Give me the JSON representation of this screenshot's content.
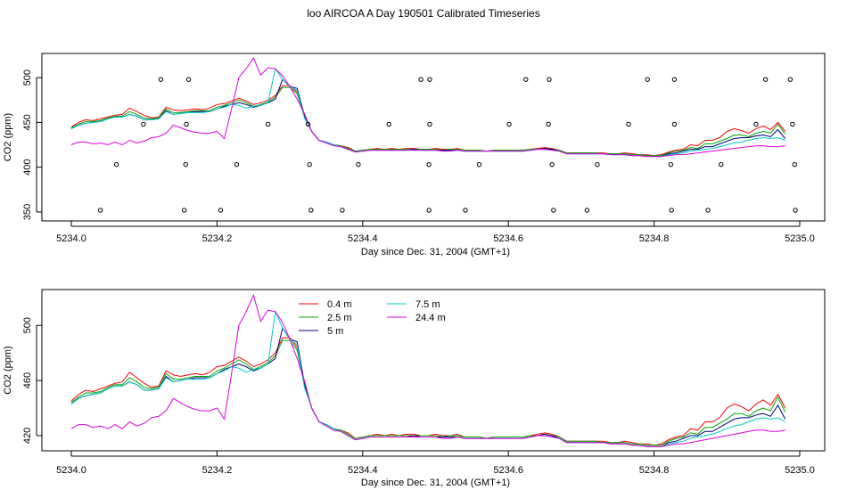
{
  "title": "loo AIRCOA A  Day 190501  Calibrated Timeseries",
  "chart_data": [
    {
      "type": "scatter+line",
      "title": "",
      "xlabel": "Day since Dec. 31, 2004 (GMT+1)",
      "ylabel": "CO2 (ppm)",
      "xlim": [
        5234.0,
        5235.0
      ],
      "ylim": [
        340,
        527
      ],
      "xticks": [
        5234.0,
        5234.2,
        5234.4,
        5234.6,
        5234.8,
        5235.0
      ],
      "xtick_labels": [
        "5234.0",
        "5234.2",
        "5234.4",
        "5234.6",
        "5234.8",
        "5235.0"
      ],
      "yticks": [
        350,
        400,
        450,
        500
      ],
      "ytick_labels": [
        "350",
        "400",
        "450",
        "500"
      ],
      "points_x": [
        5234.123,
        5234.161,
        5234.48,
        5234.492,
        5234.624,
        5234.656,
        5234.791,
        5234.828,
        5234.953,
        5234.987,
        5234.099,
        5234.158,
        5234.27,
        5234.325,
        5234.436,
        5234.492,
        5234.601,
        5234.655,
        5234.765,
        5234.828,
        5234.94,
        5234.99,
        5234.062,
        5234.157,
        5234.227,
        5234.327,
        5234.394,
        5234.491,
        5234.56,
        5234.66,
        5234.722,
        5234.823,
        5234.892,
        5234.993,
        5234.04,
        5234.155,
        5234.205,
        5234.329,
        5234.372,
        5234.491,
        5234.541,
        5234.662,
        5234.708,
        5234.824,
        5234.874,
        5234.994
      ],
      "points_y": [
        498,
        498,
        498,
        498,
        498,
        498,
        498,
        498,
        498,
        498,
        448,
        448,
        448,
        448,
        448,
        448,
        448,
        448,
        448,
        448,
        448,
        448,
        403,
        403,
        403,
        403,
        403,
        403,
        403,
        403,
        403,
        403,
        403,
        403,
        352,
        352,
        352,
        352,
        352,
        352,
        352,
        352,
        352,
        352,
        352,
        352
      ],
      "series_x": [
        5234.0,
        5234.01,
        5234.02,
        5234.03,
        5234.04,
        5234.05,
        5234.06,
        5234.07,
        5234.08,
        5234.09,
        5234.1,
        5234.11,
        5234.12,
        5234.13,
        5234.14,
        5234.15,
        5234.16,
        5234.17,
        5234.18,
        5234.19,
        5234.2,
        5234.21,
        5234.22,
        5234.23,
        5234.24,
        5234.25,
        5234.26,
        5234.27,
        5234.28,
        5234.29,
        5234.3,
        5234.31,
        5234.32,
        5234.33,
        5234.34,
        5234.35,
        5234.36,
        5234.37,
        5234.38,
        5234.39,
        5234.4,
        5234.41,
        5234.42,
        5234.43,
        5234.44,
        5234.45,
        5234.46,
        5234.47,
        5234.48,
        5234.49,
        5234.5,
        5234.51,
        5234.52,
        5234.53,
        5234.54,
        5234.55,
        5234.56,
        5234.57,
        5234.58,
        5234.59,
        5234.6,
        5234.61,
        5234.62,
        5234.63,
        5234.64,
        5234.65,
        5234.66,
        5234.67,
        5234.68,
        5234.69,
        5234.7,
        5234.71,
        5234.72,
        5234.73,
        5234.74,
        5234.75,
        5234.76,
        5234.77,
        5234.78,
        5234.79,
        5234.8,
        5234.81,
        5234.82,
        5234.83,
        5234.84,
        5234.85,
        5234.86,
        5234.87,
        5234.88,
        5234.89,
        5234.9,
        5234.91,
        5234.92,
        5234.93,
        5234.94,
        5234.95,
        5234.96,
        5234.97,
        5234.98
      ],
      "series": [
        {
          "name": "0.4 m",
          "color": "#ff0000",
          "values": [
            445,
            450,
            453,
            452,
            454,
            456,
            458,
            459,
            466,
            462,
            458,
            455,
            456,
            467,
            464,
            463,
            464,
            465,
            464,
            466,
            470,
            471,
            474,
            477,
            474,
            470,
            472,
            475,
            480,
            491,
            491,
            484,
            458,
            440,
            430,
            428,
            425,
            424,
            422,
            418,
            419,
            420,
            421,
            420,
            421,
            420,
            421,
            421,
            420,
            420,
            421,
            420,
            420,
            421,
            419,
            419,
            419,
            418,
            419,
            419,
            419,
            419,
            419,
            420,
            421,
            422,
            421,
            419,
            416,
            416,
            416,
            416,
            416,
            416,
            415,
            415,
            416,
            415,
            414,
            414,
            413,
            414,
            417,
            419,
            420,
            425,
            424,
            430,
            430,
            433,
            440,
            443,
            441,
            438,
            443,
            446,
            442,
            450,
            440
          ]
        },
        {
          "name": "2.5 m",
          "color": "#00aa00",
          "values": [
            444,
            448,
            451,
            451,
            452,
            455,
            457,
            457,
            462,
            459,
            455,
            454,
            455,
            465,
            461,
            461,
            462,
            463,
            463,
            463,
            467,
            469,
            472,
            475,
            472,
            468,
            470,
            473,
            478,
            489,
            489,
            482,
            457,
            440,
            430,
            428,
            425,
            424,
            421,
            418,
            419,
            420,
            420,
            420,
            420,
            420,
            420,
            420,
            420,
            420,
            420,
            419,
            420,
            420,
            419,
            419,
            419,
            418,
            419,
            419,
            419,
            419,
            419,
            420,
            420,
            421,
            420,
            419,
            416,
            416,
            416,
            416,
            416,
            415,
            415,
            415,
            415,
            414,
            414,
            413,
            413,
            413,
            416,
            418,
            419,
            422,
            421,
            426,
            426,
            429,
            432,
            436,
            436,
            434,
            438,
            440,
            438,
            448,
            437
          ]
        },
        {
          "name": "5 m",
          "color": "#000080",
          "values": [
            443,
            447,
            449,
            450,
            451,
            454,
            456,
            456,
            459,
            457,
            453,
            453,
            454,
            463,
            459,
            460,
            461,
            462,
            462,
            462,
            465,
            468,
            470,
            472,
            470,
            467,
            469,
            472,
            476,
            498,
            490,
            488,
            458,
            440,
            430,
            428,
            425,
            423,
            420,
            417,
            418,
            419,
            419,
            419,
            419,
            419,
            419,
            420,
            419,
            419,
            419,
            419,
            419,
            419,
            418,
            418,
            418,
            418,
            418,
            418,
            418,
            418,
            418,
            419,
            420,
            421,
            420,
            418,
            415,
            415,
            415,
            415,
            415,
            415,
            414,
            414,
            414,
            413,
            413,
            412,
            412,
            412,
            415,
            416,
            418,
            420,
            420,
            423,
            423,
            426,
            429,
            432,
            433,
            433,
            435,
            436,
            434,
            442,
            432
          ]
        },
        {
          "name": "7.5 m",
          "color": "#00cccc",
          "values": [
            443,
            447,
            449,
            450,
            451,
            454,
            456,
            456,
            459,
            457,
            453,
            453,
            454,
            462,
            459,
            460,
            461,
            461,
            461,
            462,
            465,
            467,
            470,
            469,
            466,
            468,
            469,
            472,
            510,
            498,
            490,
            486,
            455,
            440,
            430,
            428,
            425,
            423,
            420,
            417,
            418,
            419,
            419,
            419,
            419,
            419,
            419,
            419,
            419,
            419,
            419,
            418,
            418,
            419,
            418,
            418,
            418,
            418,
            418,
            418,
            418,
            418,
            418,
            419,
            420,
            420,
            419,
            418,
            415,
            415,
            415,
            415,
            415,
            415,
            414,
            414,
            414,
            413,
            413,
            412,
            412,
            412,
            414,
            415,
            416,
            418,
            419,
            420,
            421,
            423,
            425,
            427,
            428,
            430,
            432,
            433,
            432,
            433,
            430
          ]
        },
        {
          "name": "24.4 m",
          "color": "#dd00dd",
          "values": [
            425,
            428,
            428,
            426,
            427,
            425,
            428,
            425,
            430,
            427,
            429,
            433,
            434,
            438,
            447,
            444,
            441,
            439,
            438,
            438,
            440,
            432,
            465,
            500,
            510,
            522,
            503,
            511,
            510,
            502,
            490,
            476,
            460,
            440,
            430,
            427,
            424,
            423,
            420,
            417,
            418,
            419,
            419,
            419,
            419,
            419,
            419,
            419,
            419,
            419,
            419,
            418,
            418,
            419,
            418,
            418,
            418,
            418,
            418,
            418,
            418,
            418,
            418,
            419,
            420,
            420,
            419,
            418,
            415,
            415,
            415,
            415,
            415,
            415,
            414,
            414,
            414,
            413,
            413,
            412,
            412,
            412,
            413,
            414,
            414,
            415,
            416,
            417,
            418,
            419,
            420,
            421,
            422,
            423,
            424,
            424,
            423,
            423,
            424
          ]
        }
      ]
    },
    {
      "type": "line",
      "title": "",
      "xlabel": "Day since Dec. 31, 2004 (GMT+1)",
      "ylabel": "CO2 (ppm)",
      "xlim": [
        5234.0,
        5235.0
      ],
      "ylim": [
        409,
        526
      ],
      "xticks": [
        5234.0,
        5234.2,
        5234.4,
        5234.6,
        5234.8,
        5235.0
      ],
      "xtick_labels": [
        "5234.0",
        "5234.2",
        "5234.4",
        "5234.6",
        "5234.8",
        "5235.0"
      ],
      "yticks": [
        420,
        460,
        500
      ],
      "ytick_labels": [
        "420",
        "460",
        "500"
      ],
      "legend": [
        {
          "label": "0.4 m",
          "color": "#ff0000",
          "col": 0,
          "row": 0
        },
        {
          "label": "2.5 m",
          "color": "#00aa00",
          "col": 0,
          "row": 1
        },
        {
          "label": "5 m",
          "color": "#000080",
          "col": 0,
          "row": 2
        },
        {
          "label": "7.5 m",
          "color": "#00cccc",
          "col": 1,
          "row": 0
        },
        {
          "label": "24.4 m",
          "color": "#dd00dd",
          "col": 1,
          "row": 1
        }
      ]
    }
  ]
}
